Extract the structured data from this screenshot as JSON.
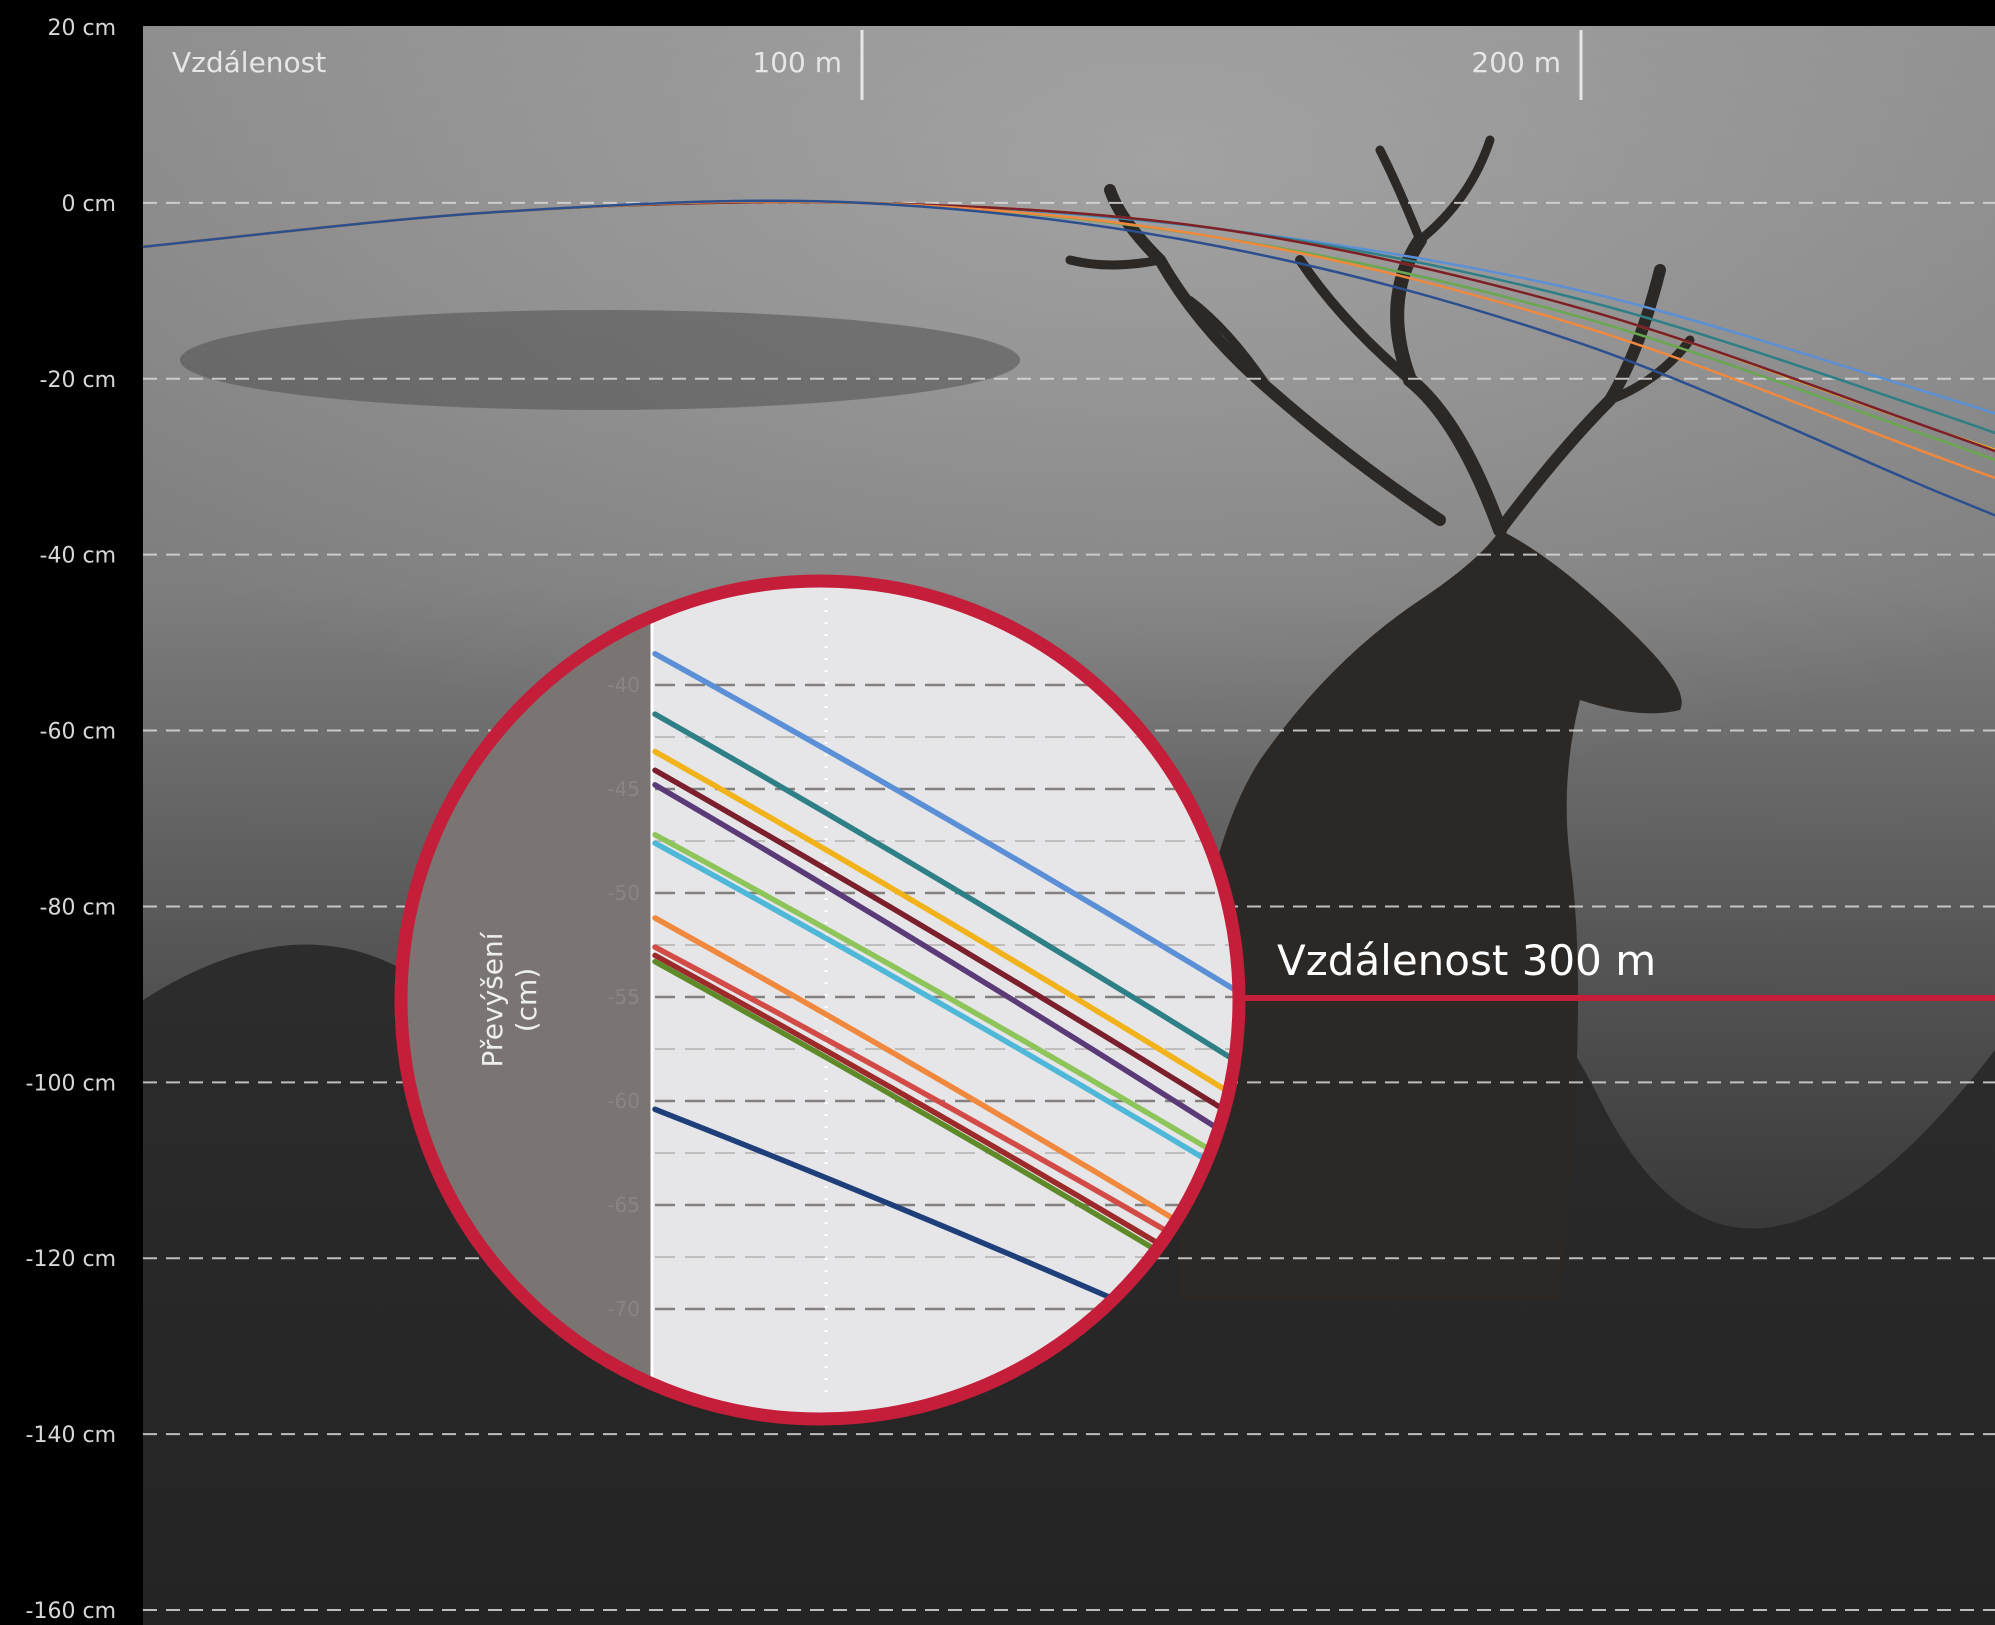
{
  "colors": {
    "accent": "#c41e3a",
    "photo_bg": "#6c6c6c",
    "grid": "#d8d8d8",
    "inset_bg": "#e6e6e8",
    "inset_axis_bg": "#7a7573"
  },
  "chart_data": [
    {
      "type": "line",
      "title": "",
      "x_unit": "m",
      "y_unit": "cm",
      "x_ticks": [
        100,
        200
      ],
      "x_tick_labels": [
        "100 m",
        "200 m"
      ],
      "x_axis_corner_label": "Vzdálenost",
      "xlim": [
        0,
        280
      ],
      "ylim": [
        -160,
        20
      ],
      "y_ticks": [
        20,
        0,
        -20,
        -40,
        -60,
        -80,
        -100,
        -120,
        -140,
        -160
      ],
      "y_tick_labels": [
        "20 cm",
        "0 cm",
        "-20 cm",
        "-40 cm",
        "-60 cm",
        "-80 cm",
        "-100 cm",
        "-120 cm",
        "-140 cm",
        "-160 cm"
      ],
      "grid": true,
      "annotation": "Vzdálenost 300 m",
      "series": [
        {
          "color": "#5b8fd6",
          "x": [
            0,
            50,
            100,
            150,
            200,
            250,
            280
          ],
          "y": [
            -5,
            -1,
            0,
            -3,
            -10,
            -22,
            -30
          ]
        },
        {
          "color": "#2f7f87",
          "x": [
            0,
            50,
            100,
            150,
            200,
            250,
            280
          ],
          "y": [
            -5,
            -1,
            0,
            -3,
            -11,
            -24,
            -33
          ]
        },
        {
          "color": "#f2b21a",
          "x": [
            0,
            50,
            100,
            150,
            200,
            250,
            280
          ],
          "y": [
            -5,
            -1,
            0,
            -3,
            -12,
            -26,
            -34
          ]
        },
        {
          "color": "#7a1f2b",
          "x": [
            0,
            50,
            100,
            150,
            200,
            250,
            280
          ],
          "y": [
            -5,
            -1,
            0,
            -3,
            -12,
            -26,
            -35
          ]
        },
        {
          "color": "#6aa84f",
          "x": [
            0,
            50,
            100,
            150,
            200,
            250,
            280
          ],
          "y": [
            -5,
            -1,
            0,
            -4,
            -13,
            -27,
            -36
          ]
        },
        {
          "color": "#f0883e",
          "x": [
            0,
            50,
            100,
            150,
            200,
            250,
            280
          ],
          "y": [
            -5,
            -1,
            0,
            -4,
            -14,
            -29,
            -38
          ]
        },
        {
          "color": "#2c4f8f",
          "x": [
            0,
            50,
            100,
            150,
            200,
            250,
            280
          ],
          "y": [
            -5,
            -1,
            0,
            -5,
            -16,
            -33,
            -43
          ]
        }
      ]
    },
    {
      "type": "line",
      "title": "",
      "ylabel": "Převýšení (cm)",
      "ylabel_lines": [
        "Převýšení",
        "(cm)"
      ],
      "y_ticks": [
        -40,
        -45,
        -50,
        -55,
        -60,
        -65,
        -70
      ],
      "y_tick_labels": [
        "-40",
        "-45",
        "-50",
        "-55",
        "-60",
        "-65",
        "-70"
      ],
      "ylim": [
        -72.5,
        -37
      ],
      "xlim": [
        0,
        1
      ],
      "grid": true,
      "series": [
        {
          "color": "#5b8fd6",
          "x": [
            0,
            1
          ],
          "y": [
            -38.5,
            -54.8
          ]
        },
        {
          "color": "#2f7f87",
          "x": [
            0,
            1
          ],
          "y": [
            -41.4,
            -58.2
          ]
        },
        {
          "color": "#f2b21a",
          "x": [
            0,
            1
          ],
          "y": [
            -43.2,
            -59.9
          ]
        },
        {
          "color": "#7a1f2b",
          "x": [
            0,
            1
          ],
          "y": [
            -44.1,
            -60.9
          ]
        },
        {
          "color": "#5b3a78",
          "x": [
            0,
            1
          ],
          "y": [
            -44.8,
            -62.0
          ]
        },
        {
          "color": "#8dc55a",
          "x": [
            0,
            1
          ],
          "y": [
            -47.2,
            -63.2
          ]
        },
        {
          "color": "#4fb8d8",
          "x": [
            0,
            1
          ],
          "y": [
            -47.6,
            -63.8
          ]
        },
        {
          "color": "#f0883e",
          "x": [
            0,
            1
          ],
          "y": [
            -51.2,
            -67.6
          ]
        },
        {
          "color": "#d24b47",
          "x": [
            0,
            1
          ],
          "y": [
            -52.6,
            -68.3
          ]
        },
        {
          "color": "#9c2a2a",
          "x": [
            0,
            1
          ],
          "y": [
            -53.0,
            -69.2
          ]
        },
        {
          "color": "#5f8a2a",
          "x": [
            0,
            1
          ],
          "y": [
            -53.3,
            -69.6
          ]
        },
        {
          "color": "#1e3f7a",
          "x": [
            0,
            1
          ],
          "y": [
            -60.4,
            -72.2
          ]
        }
      ]
    }
  ]
}
